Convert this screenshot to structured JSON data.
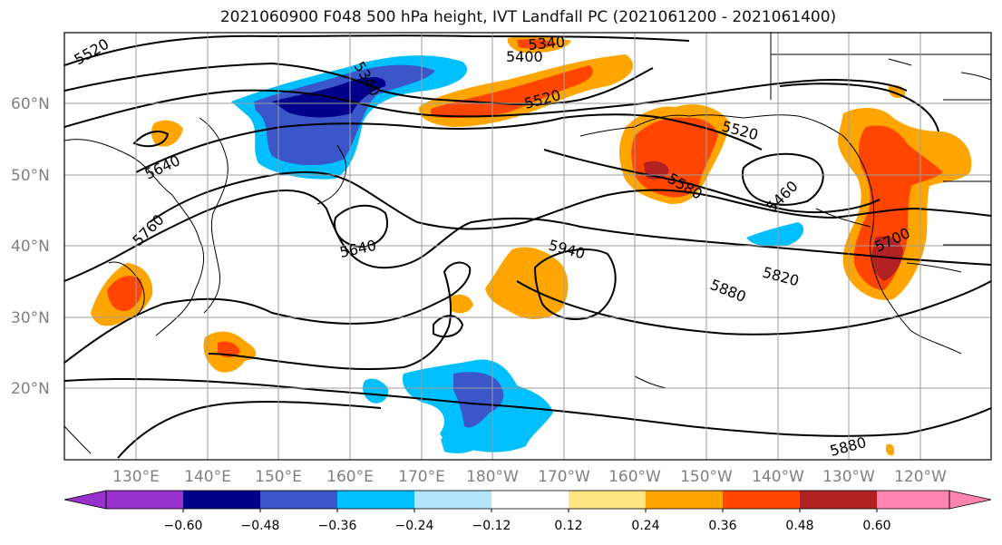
{
  "title": "2021060900 F048 500 hPa height, IVT Landfall PC (2021061200 - 2021061400)",
  "map": {
    "lat_labels": [
      "60°N",
      "50°N",
      "40°N",
      "30°N",
      "20°N"
    ],
    "lon_labels": [
      "130°E",
      "140°E",
      "150°E",
      "160°E",
      "170°E",
      "180°W",
      "170°W",
      "160°W",
      "150°W",
      "140°W",
      "130°W",
      "120°W"
    ],
    "grid_color": "#9e9e9e",
    "contour_color": "#000000"
  },
  "contour_labels": [
    "5520",
    "5340",
    "5400",
    "5520",
    "5520",
    "5640",
    "5760",
    "5640",
    "5940",
    "5580",
    "5460",
    "5700",
    "5820",
    "5880",
    "5880",
    "5340"
  ],
  "colorbar": {
    "colors": [
      "#9932cc",
      "#00008b",
      "#3a56c9",
      "#00bfff",
      "#b3e5fc",
      "#ffffff",
      "#ffe680",
      "#ffa500",
      "#ff4500",
      "#b22222",
      "#ff85b0"
    ],
    "tick_labels": [
      "−0.60",
      "−0.48",
      "−0.36",
      "−0.24",
      "−0.12",
      "0.12",
      "0.24",
      "0.36",
      "0.48",
      "0.60"
    ]
  }
}
